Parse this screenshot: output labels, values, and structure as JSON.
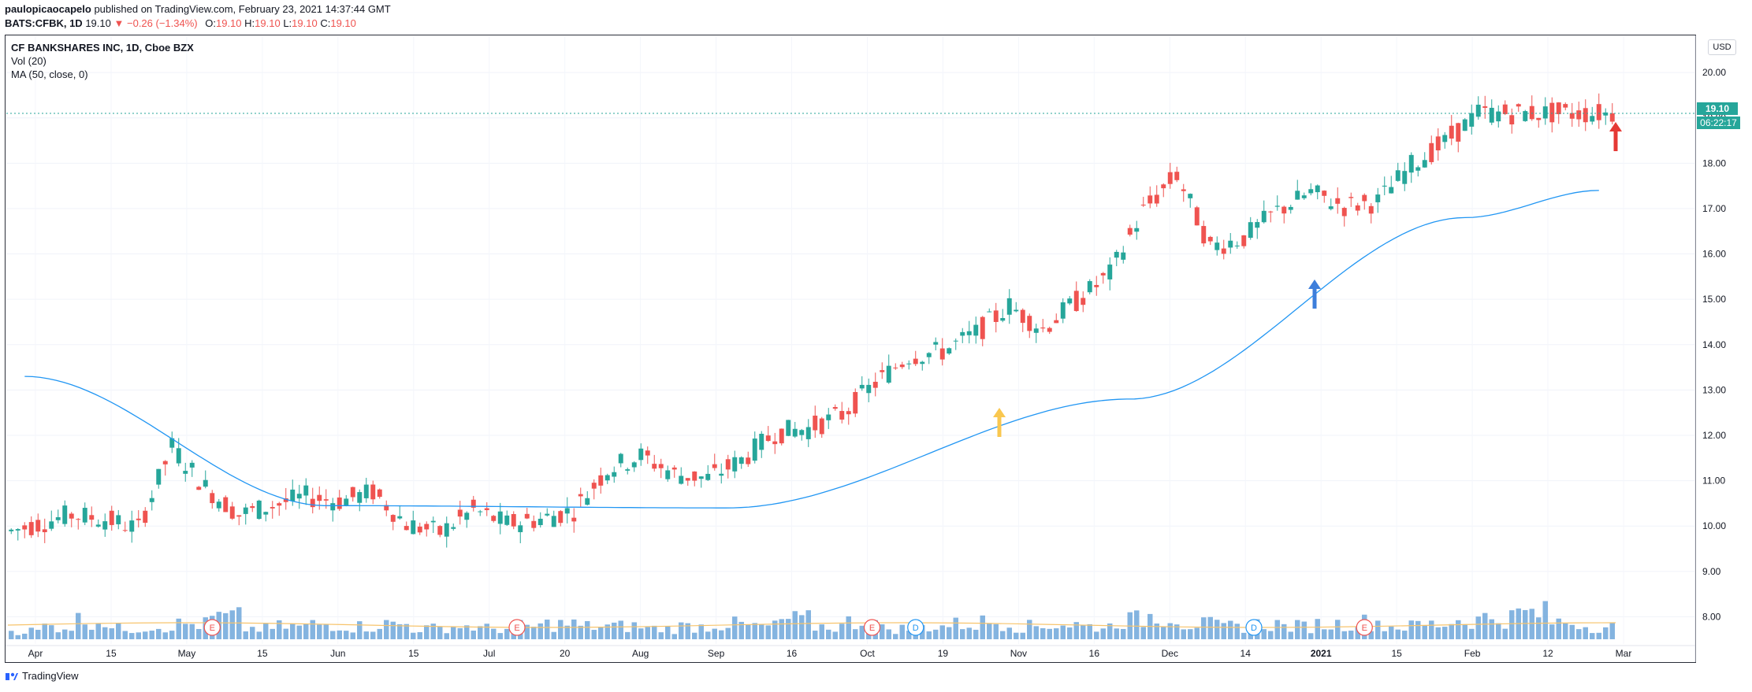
{
  "header": {
    "publisher": "paulopicaocapelo",
    "published_text": "published on TradingView.com, February 23, 2021 14:37:44 GMT",
    "symbol": "BATS:CFBK, 1D",
    "last": "19.10",
    "change_arrow": "▼",
    "change": "−0.26 (−1.34%)",
    "o_label": "O:",
    "o": "19.10",
    "h_label": "H:",
    "h": "19.10",
    "l_label": "L:",
    "l": "19.10",
    "c_label": "C:",
    "c": "19.10"
  },
  "legend": {
    "title": "CF BANKSHARES INC, 1D, Cboe BZX",
    "vol": "Vol (20)",
    "ma": "MA (50, close, 0)"
  },
  "currency": "USD",
  "price_badge": "19.10",
  "timer_badge": "06:22:17",
  "footer": {
    "brand": "TradingView"
  },
  "colors": {
    "up": "#26a69a",
    "down": "#ef5350",
    "ma": "#2196f3",
    "volume": "#5b9bd5",
    "volume_ma": "#f7c46c",
    "earnings": "#ef5350",
    "dividend": "#2196f3",
    "arrow_yellow": "#f9c74f",
    "arrow_blue": "#3d7edb",
    "arrow_red": "#e53935"
  },
  "chart_data": {
    "type": "candlestick",
    "y_axis": {
      "range": [
        7.4,
        20.8
      ],
      "ticks": [
        "20.00",
        "19.00",
        "18.00",
        "17.00",
        "16.00",
        "15.00",
        "14.00",
        "13.00",
        "12.00",
        "11.00",
        "10.00",
        "9.00",
        "8.00"
      ]
    },
    "x_axis": {
      "ticks": [
        "Apr",
        "15",
        "May",
        "15",
        "Jun",
        "15",
        "Jul",
        "20",
        "Aug",
        "Sep",
        "16",
        "Oct",
        "19",
        "Nov",
        "16",
        "Dec",
        "14",
        "2021",
        "15",
        "Feb",
        "12",
        "Mar"
      ]
    },
    "x": [
      "2020-03-30",
      "2020-04-06",
      "2020-04-13",
      "2020-04-20",
      "2020-04-27",
      "2020-05-04",
      "2020-05-11",
      "2020-05-18",
      "2020-05-25",
      "2020-06-01",
      "2020-06-08",
      "2020-06-15",
      "2020-06-22",
      "2020-06-29",
      "2020-07-06",
      "2020-07-13",
      "2020-07-20",
      "2020-07-27",
      "2020-08-03",
      "2020-08-10",
      "2020-08-17",
      "2020-08-24",
      "2020-08-31",
      "2020-09-08",
      "2020-09-14",
      "2020-09-21",
      "2020-09-28",
      "2020-10-05",
      "2020-10-12",
      "2020-10-19",
      "2020-10-26",
      "2020-11-02",
      "2020-11-09",
      "2020-11-16",
      "2020-11-23",
      "2020-11-30",
      "2020-12-07",
      "2020-12-14",
      "2020-12-21",
      "2020-12-28",
      "2021-01-04",
      "2021-01-11",
      "2021-01-19",
      "2021-01-25",
      "2021-02-01",
      "2021-02-08",
      "2021-02-16",
      "2021-02-22"
    ],
    "close": [
      10.05,
      10.25,
      10.15,
      9.95,
      11.75,
      10.85,
      10.25,
      10.45,
      10.65,
      10.55,
      10.75,
      10.05,
      9.85,
      10.35,
      10.05,
      10.15,
      10.35,
      11.25,
      11.55,
      11.15,
      11.05,
      11.45,
      12.05,
      12.15,
      12.45,
      13.15,
      13.75,
      13.85,
      14.25,
      14.85,
      14.35,
      14.95,
      15.55,
      16.95,
      17.75,
      16.15,
      16.35,
      16.95,
      17.35,
      17.05,
      17.15,
      17.95,
      18.45,
      19.1,
      19.1,
      19.1,
      19.1,
      19.1
    ],
    "volume": [
      4,
      6,
      9,
      5,
      6,
      7,
      10,
      5,
      6,
      7,
      6,
      7,
      5,
      6,
      5,
      6,
      7,
      6,
      6,
      5,
      6,
      7,
      6,
      9,
      6,
      8,
      5,
      6,
      7,
      8,
      6,
      7,
      6,
      9,
      11,
      7,
      6,
      7,
      6,
      7,
      8,
      6,
      7,
      9,
      10,
      12,
      8,
      6
    ],
    "ma50_anchors": [
      [
        0,
        13.3
      ],
      [
        9,
        10.45
      ],
      [
        21,
        10.4
      ],
      [
        33,
        12.8
      ],
      [
        43,
        16.8
      ],
      [
        47,
        17.4
      ]
    ]
  }
}
